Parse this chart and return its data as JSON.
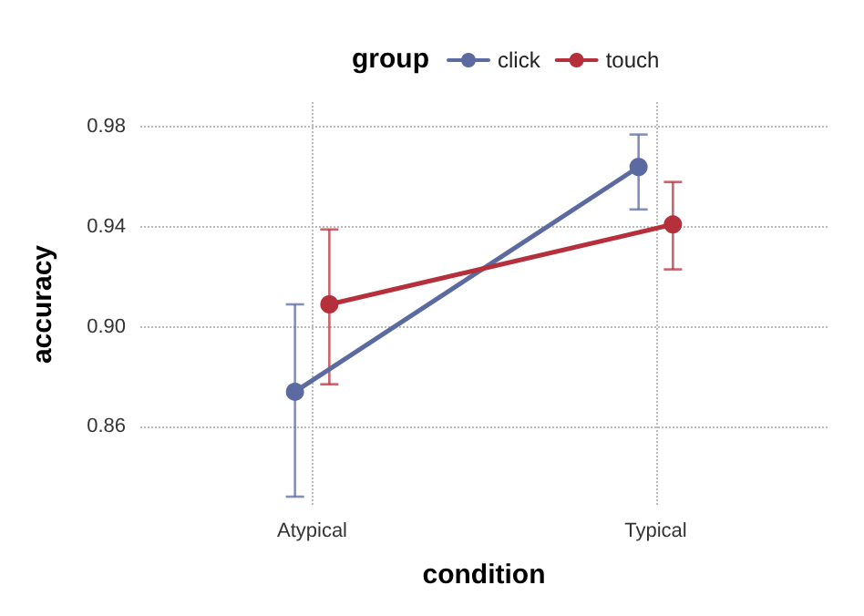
{
  "chart_data": {
    "type": "line",
    "xlabel": "condition",
    "ylabel": "accuracy",
    "legend_title": "group",
    "legend": "top",
    "categories": [
      "Atypical",
      "Typical"
    ],
    "series": [
      {
        "name": "click",
        "color": "#5b6aa0",
        "values": [
          0.874,
          0.964
        ],
        "errors": [
          [
            0.832,
            0.909
          ],
          [
            0.947,
            0.977
          ]
        ]
      },
      {
        "name": "touch",
        "color": "#b5303a",
        "values": [
          0.909,
          0.941
        ],
        "errors": [
          [
            0.877,
            0.939
          ],
          [
            0.923,
            0.958
          ]
        ]
      }
    ],
    "ylim": [
      0.828,
      0.99
    ],
    "yticks": [
      0.86,
      {
        "value": 0.9,
        "label": "0.90"
      },
      0.94,
      0.98
    ],
    "grid": true,
    "marker": "circle",
    "line_style": "solid"
  }
}
